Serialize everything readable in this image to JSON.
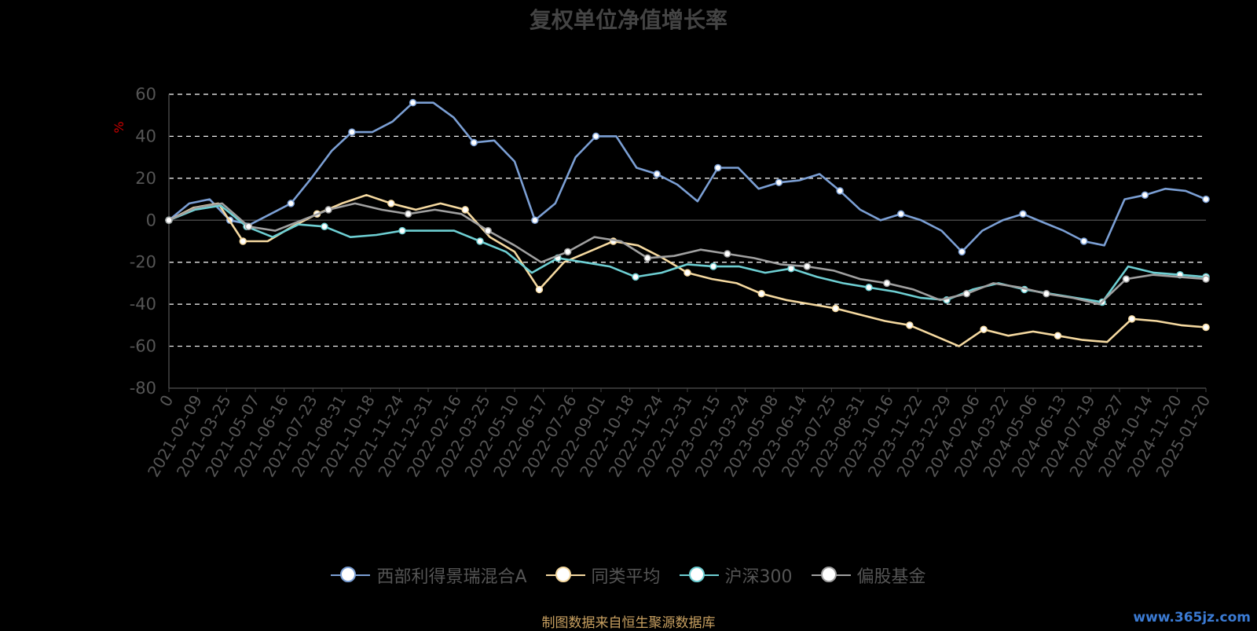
{
  "title": "复权单位净值增长率",
  "source_note": "制图数据来自恒生聚源数据库",
  "watermark": "www.365jz.com",
  "colors": {
    "background": "#000000",
    "grid": "#ffffff",
    "axis": "#444444",
    "tick_text": "#555555",
    "ylabel": "#cc0000"
  },
  "chart_data": {
    "type": "line",
    "title": "复权单位净值增长率",
    "ylabel": "%",
    "ylim": [
      -80,
      60
    ],
    "yticks": [
      60,
      40,
      20,
      0,
      -20,
      -40,
      -60,
      -80
    ],
    "grid": true,
    "legend_position": "bottom",
    "x_tick_labels": [
      "0",
      "2021-02-09",
      "2021-03-25",
      "2021-05-07",
      "2021-06-16",
      "2021-07-23",
      "2021-08-31",
      "2021-10-18",
      "2021-11-24",
      "2021-12-31",
      "2022-02-16",
      "2022-03-25",
      "2022-05-10",
      "2022-06-17",
      "2022-07-26",
      "2022-09-01",
      "2022-10-18",
      "2022-11-24",
      "2022-12-31",
      "2023-02-15",
      "2023-03-24",
      "2023-05-08",
      "2023-06-14",
      "2023-07-25",
      "2023-08-31",
      "2023-10-16",
      "2023-11-22",
      "2023-12-29",
      "2024-02-06",
      "2024-03-22",
      "2024-05-06",
      "2024-06-13",
      "2024-07-19",
      "2024-08-27",
      "2024-10-14",
      "2024-11-20",
      "2025-01-20"
    ],
    "series": [
      {
        "name": "西部利得景瑞混合A",
        "color": "#7b9fd4",
        "values": [
          0,
          8,
          10,
          0,
          -2,
          3,
          8,
          20,
          33,
          42,
          42,
          47,
          56,
          56,
          49,
          37,
          38,
          28,
          0,
          8,
          30,
          40,
          40,
          25,
          22,
          17,
          9,
          25,
          25,
          15,
          18,
          19,
          22,
          14,
          5,
          0,
          3,
          0,
          -5,
          -15,
          -5,
          0,
          3,
          -1,
          -5,
          -10,
          -12,
          10,
          12,
          15,
          14,
          10
        ]
      },
      {
        "name": "同类平均",
        "color": "#f5d9a0",
        "values": [
          0,
          6,
          8,
          -10,
          -10,
          -3,
          3,
          8,
          12,
          8,
          5,
          8,
          5,
          -8,
          -15,
          -33,
          -20,
          -15,
          -10,
          -12,
          -18,
          -25,
          -28,
          -30,
          -35,
          -38,
          -40,
          -42,
          -45,
          -48,
          -50,
          -55,
          -60,
          -52,
          -55,
          -53,
          -55,
          -57,
          -58,
          -47,
          -48,
          -50,
          -51
        ]
      },
      {
        "name": "沪深300",
        "color": "#6ecfd3",
        "values": [
          0,
          5,
          7,
          -3,
          -8,
          -2,
          -3,
          -8,
          -7,
          -5,
          -5,
          -5,
          -10,
          -15,
          -25,
          -18,
          -20,
          -22,
          -27,
          -25,
          -21,
          -22,
          -22,
          -25,
          -23,
          -27,
          -30,
          -32,
          -34,
          -37,
          -38,
          -33,
          -30,
          -33,
          -35,
          -37,
          -39,
          -22,
          -25,
          -26,
          -27
        ]
      },
      {
        "name": "偏股基金",
        "color": "#a0a0a0",
        "values": [
          0,
          6,
          8,
          -3,
          -5,
          0,
          5,
          8,
          5,
          3,
          5,
          3,
          -5,
          -12,
          -20,
          -15,
          -8,
          -10,
          -18,
          -17,
          -14,
          -16,
          -18,
          -21,
          -22,
          -24,
          -28,
          -30,
          -33,
          -38,
          -35,
          -30,
          -32,
          -35,
          -37,
          -40,
          -28,
          -26,
          -27,
          -28
        ]
      }
    ]
  }
}
